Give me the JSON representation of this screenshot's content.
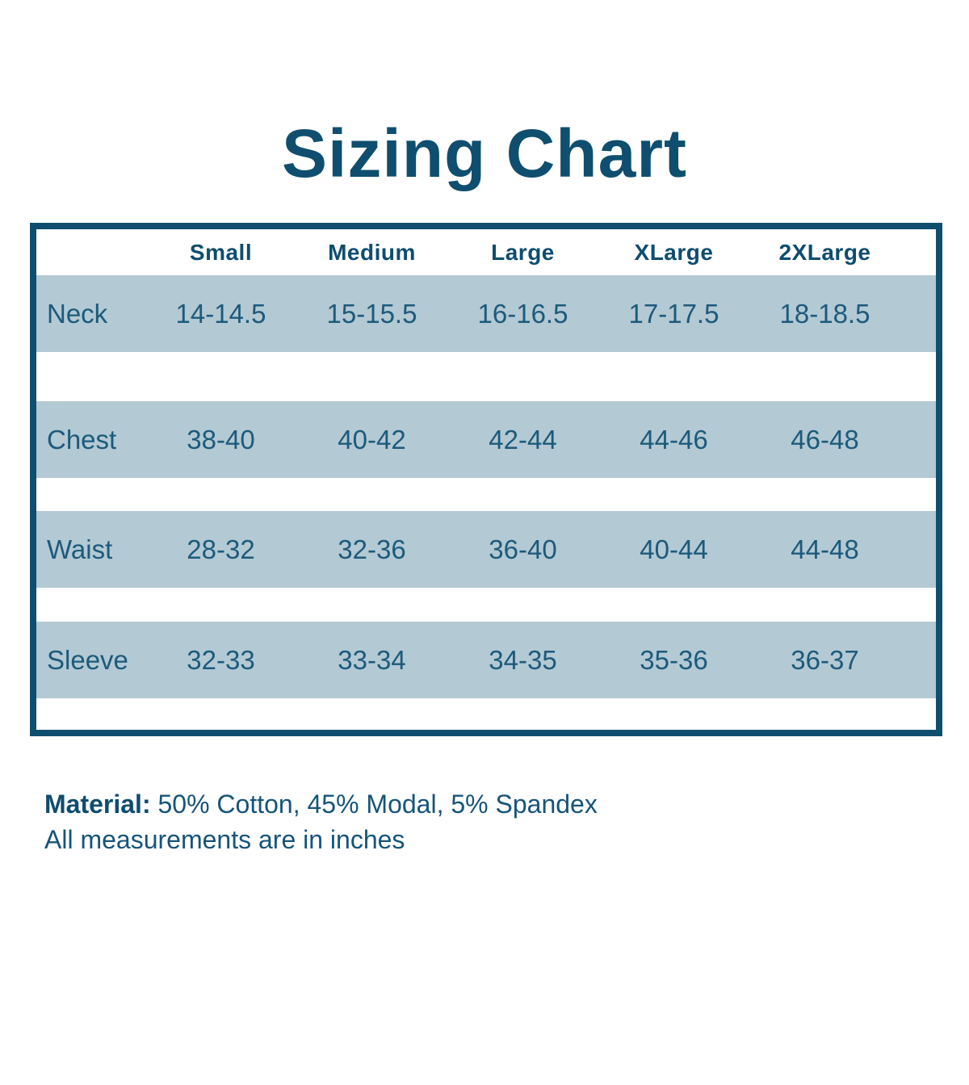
{
  "title": "Sizing Chart",
  "table": {
    "columns": [
      "Small",
      "Medium",
      "Large",
      "XLarge",
      "2XLarge"
    ],
    "rows": [
      {
        "label": "Neck",
        "values": [
          "14-14.5",
          "15-15.5",
          "16-16.5",
          "17-17.5",
          "18-18.5"
        ]
      },
      {
        "label": "Chest",
        "values": [
          "38-40",
          "40-42",
          "42-44",
          "44-46",
          "46-48"
        ]
      },
      {
        "label": "Waist",
        "values": [
          "28-32",
          "32-36",
          "36-40",
          "40-44",
          "44-48"
        ]
      },
      {
        "label": "Sleeve",
        "values": [
          "32-33",
          "33-34",
          "34-35",
          "35-36",
          "36-37"
        ]
      }
    ]
  },
  "chart_data": {
    "type": "table",
    "title": "Sizing Chart",
    "columns": [
      "",
      "Small",
      "Medium",
      "Large",
      "XLarge",
      "2XLarge"
    ],
    "rows": [
      [
        "Neck",
        "14-14.5",
        "15-15.5",
        "16-16.5",
        "17-17.5",
        "18-18.5"
      ],
      [
        "Chest",
        "38-40",
        "40-42",
        "42-44",
        "44-46",
        "46-48"
      ],
      [
        "Waist",
        "28-32",
        "32-36",
        "36-40",
        "40-44",
        "44-48"
      ],
      [
        "Sleeve",
        "32-33",
        "33-34",
        "34-35",
        "35-36",
        "36-37"
      ]
    ]
  },
  "notes": {
    "material_label": "Material:",
    "material_value": "50% Cotton, 45% Modal, 5% Spandex",
    "measurements_note": "All measurements are in inches"
  },
  "colors": {
    "accent_dark": "#0f4e6e",
    "band": "#b3c9d3",
    "background": "#ffffff"
  }
}
